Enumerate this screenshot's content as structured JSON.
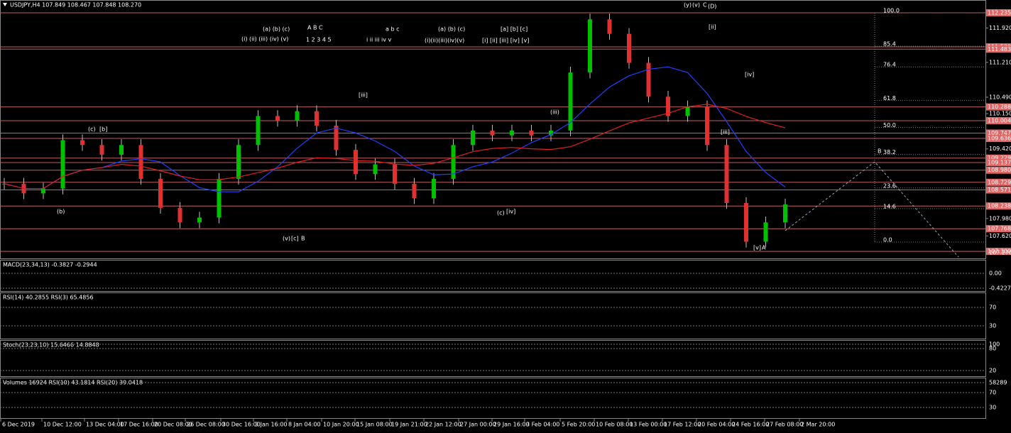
{
  "window": {
    "title": "USDJPY,H4  107.849 108.467 107.848 108.270",
    "price": {
      "ylim": [
        107.14,
        112.5
      ],
      "levels": [
        {
          "value": 112.235,
          "label": "112.235"
        },
        {
          "value": 111.53,
          "label": "111.530"
        },
        {
          "value": 111.483,
          "label": "111.483"
        },
        {
          "value": 110.288,
          "label": "110.288"
        },
        {
          "value": 110.004,
          "label": "110.004"
        },
        {
          "value": 109.747,
          "label": "109.747"
        },
        {
          "value": 109.636,
          "label": "109.636"
        },
        {
          "value": 109.229,
          "label": "109.229"
        },
        {
          "value": 109.137,
          "label": "109.137"
        },
        {
          "value": 108.98,
          "label": "108.980"
        },
        {
          "value": 108.729,
          "label": "108.729"
        },
        {
          "value": 108.571,
          "label": "108.571"
        },
        {
          "value": 108.238,
          "label": "108.238"
        },
        {
          "value": 107.768,
          "label": "107.768"
        },
        {
          "value": 107.3,
          "label": "107.300"
        }
      ],
      "ticks": [
        {
          "value": 111.92,
          "label": "111.920"
        },
        {
          "value": 111.21,
          "label": "111.210"
        },
        {
          "value": 110.49,
          "label": "110.490"
        },
        {
          "value": 110.15,
          "label": "110.150"
        },
        {
          "value": 109.42,
          "label": "109.420"
        },
        {
          "value": 107.98,
          "label": "107.980"
        },
        {
          "value": 107.62,
          "label": "107.620"
        },
        {
          "value": 107.27,
          "label": "107.270"
        }
      ],
      "close": [
        108.7,
        108.5,
        108.6,
        109.6,
        109.5,
        109.3,
        109.5,
        108.8,
        108.2,
        107.9,
        108.0,
        108.8,
        109.5,
        110.1,
        110.0,
        110.2,
        109.9,
        109.4,
        108.9,
        109.1,
        108.7,
        108.4,
        108.8,
        109.5,
        109.8,
        109.7,
        109.8,
        109.7,
        109.8,
        111.0,
        112.1,
        111.8,
        111.2,
        110.5,
        110.1,
        110.3,
        109.5,
        108.3,
        107.5,
        107.9,
        108.27
      ]
    },
    "fib": [
      {
        "value": 100,
        "label": "100.0"
      },
      {
        "value": 85.4,
        "label": "85.4"
      },
      {
        "value": 76.4,
        "label": "76.4"
      },
      {
        "value": 61.8,
        "label": "61.8"
      },
      {
        "value": 50,
        "label": "50.0"
      },
      {
        "value": 38.2,
        "label": "38.2"
      },
      {
        "value": 23.6,
        "label": "23.6"
      },
      {
        "value": 14.6,
        "label": "14.6"
      },
      {
        "value": 0,
        "label": "0.0"
      }
    ],
    "waves": [
      "(i)  (ii)  (iii)  (iv)  (v)",
      "(a) (b) (c)",
      "A   B   C",
      "1  2  3  4  5",
      "a   b   c",
      "i  ii  iii  iv  v",
      "(a)  (b)  (c)",
      "(i)(ii)(iii)(iv)(v)",
      "[a] [b] [c]",
      "[i] [ii] [iii] [iv] [v]",
      "(b)",
      "(c)",
      "[b]",
      "(iii)",
      "[iii]",
      "(v)",
      "[c]",
      "B",
      "(c)",
      "[iv]",
      "(y)",
      "(v)",
      "C",
      "(D)",
      "[ii]",
      "[iv]",
      "[iii]",
      "[v]",
      "A",
      "B"
    ],
    "panes": [
      {
        "title": "MACD(23,34,13) -0.3827 -0.2944",
        "ticks": [
          "0.00",
          "-0.4227"
        ]
      },
      {
        "title": "RSI(14) 40.2855  RSI(3) 65.4856",
        "ticks": [
          "70",
          "30"
        ]
      },
      {
        "title": "Stoch(23,23,10) 15.6466 14.8848",
        "ticks": [
          "100",
          "80",
          "20"
        ]
      },
      {
        "title": "Volumes 16924  RSI(10) 43.1814  RSI(20) 39.0418",
        "ticks": [
          "58289",
          "70",
          "30"
        ]
      }
    ],
    "dates": [
      "6 Dec 2019",
      "10 Dec 12:00",
      "13 Dec 04:00",
      "17 Dec 16:00",
      "20 Dec 08:00",
      "26 Dec 08:00",
      "30 Dec 16:00",
      "3 Jan 16:00",
      "8 Jan 04:00",
      "10 Jan 20:00",
      "15 Jan 08:00",
      "19 Jan 21:00",
      "22 Jan 12:00",
      "27 Jan 00:00",
      "29 Jan 16:00",
      "3 Feb 04:00",
      "5 Feb 20:00",
      "10 Feb 08:00",
      "13 Feb 00:00",
      "17 Feb 12:00",
      "20 Feb 04:00",
      "24 Feb 16:00",
      "27 Feb 08:00",
      "2 Mar 20:00"
    ]
  }
}
